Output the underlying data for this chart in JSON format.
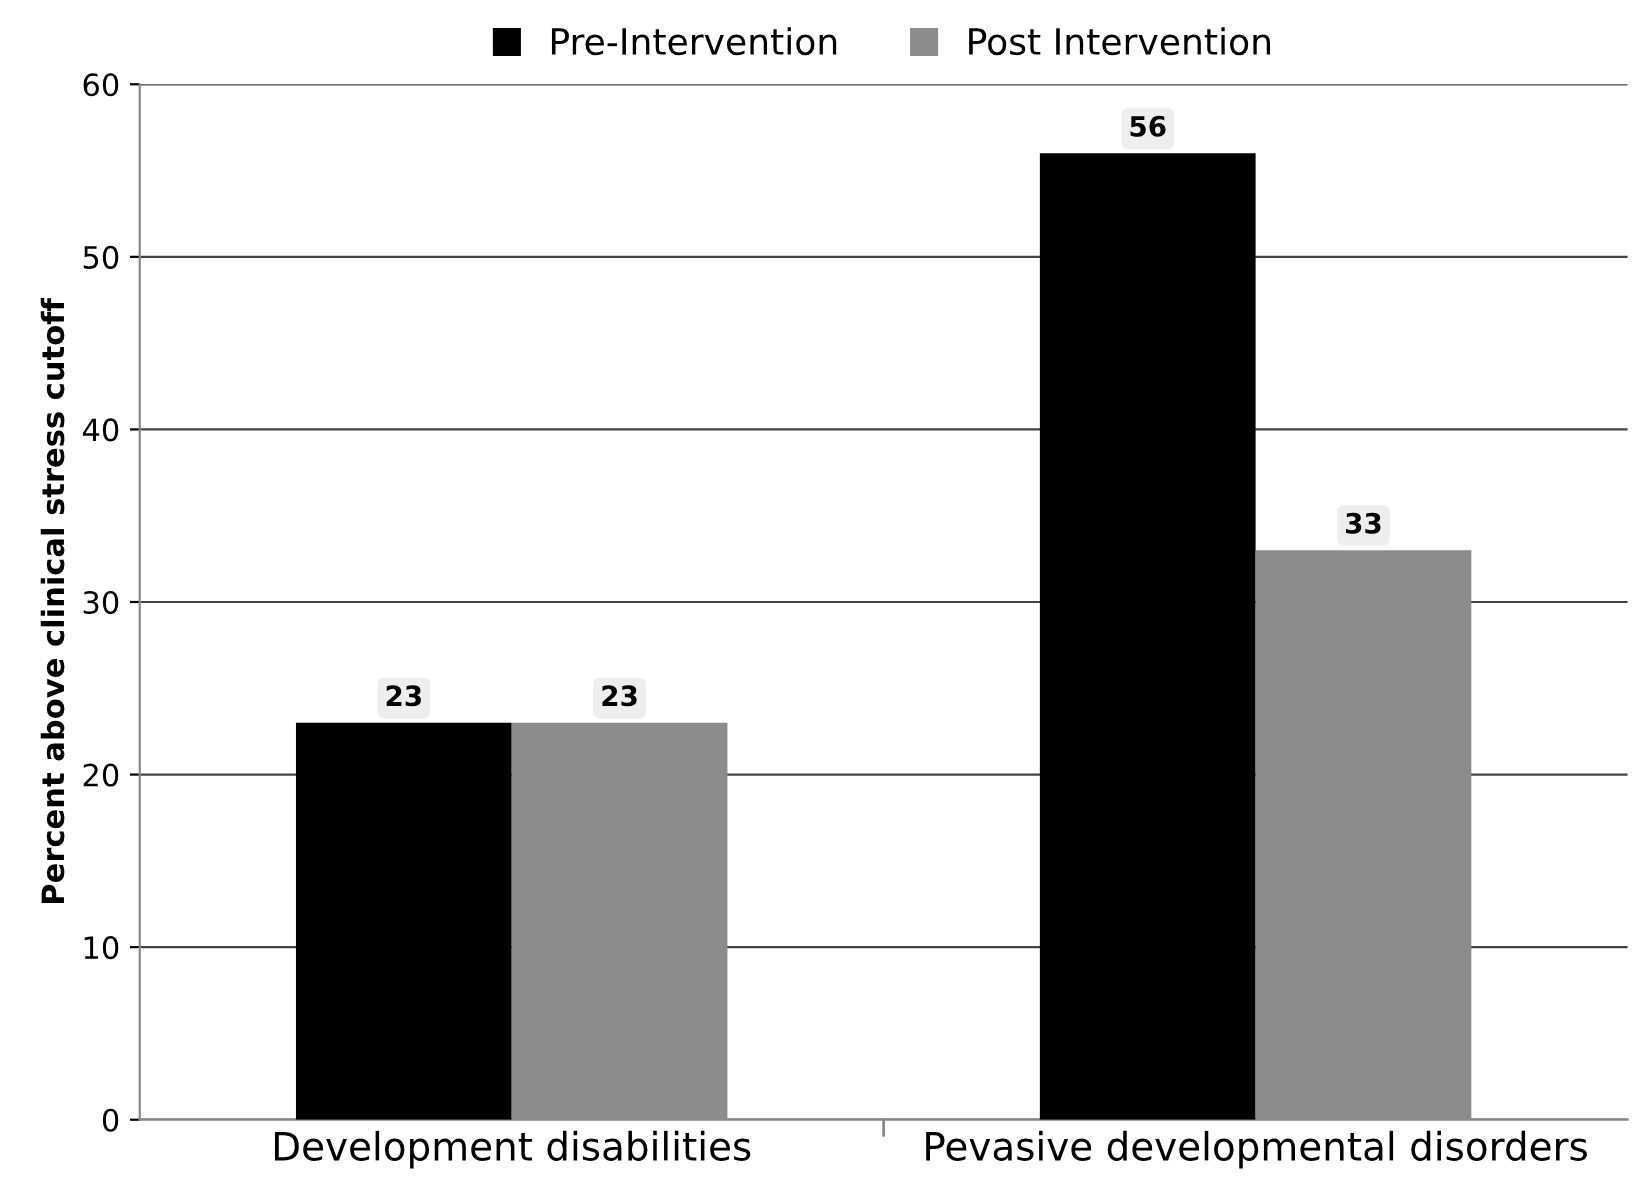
{
  "chart_data": {
    "type": "bar",
    "ylabel": "Percent above clinical stress cutoff",
    "categories": [
      "Development disabilities",
      "Pevasive developmental disorders"
    ],
    "series": [
      {
        "name": "Pre-Intervention",
        "color": "#000000",
        "values": [
          23,
          56
        ]
      },
      {
        "name": "Post Intervention",
        "color": "#8c8c8c",
        "values": [
          23,
          33
        ]
      }
    ],
    "ylim": [
      0,
      60
    ],
    "yticks": [
      0,
      10,
      20,
      30,
      40,
      50,
      60
    ],
    "grid": "y",
    "legend": "top",
    "data_labels": true
  }
}
